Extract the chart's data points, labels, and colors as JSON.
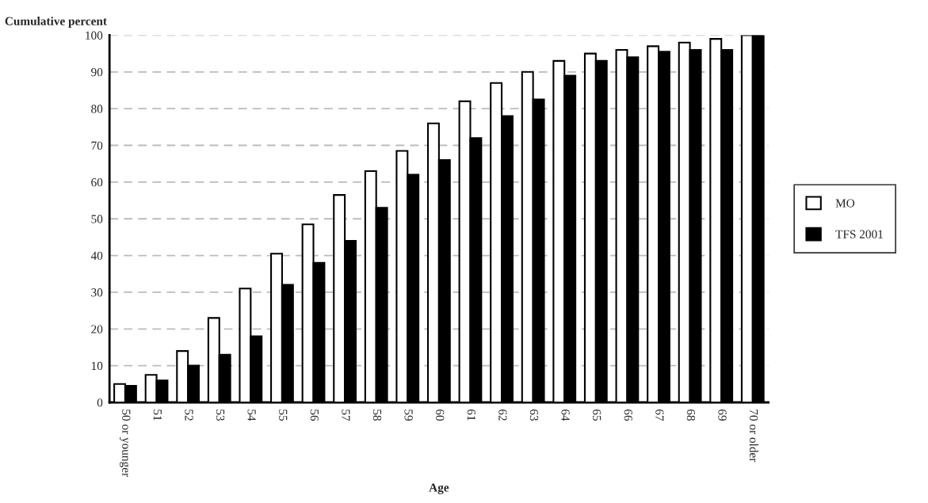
{
  "chart_data": {
    "type": "bar",
    "categories": [
      "50 or younger",
      "51",
      "52",
      "53",
      "54",
      "55",
      "56",
      "57",
      "58",
      "59",
      "60",
      "61",
      "62",
      "63",
      "64",
      "65",
      "66",
      "67",
      "68",
      "69",
      "70 or older"
    ],
    "series": [
      {
        "name": "MO",
        "color": "#ffffff",
        "values": [
          5,
          7.5,
          14,
          23,
          31,
          40.5,
          48.5,
          56.5,
          63,
          68.5,
          76,
          82,
          87,
          90,
          93,
          95,
          96,
          97,
          98,
          99,
          100
        ]
      },
      {
        "name": "TFS 2001",
        "color": "#000000",
        "values": [
          4.5,
          6,
          10,
          13,
          18,
          32,
          38,
          44,
          53,
          62,
          66,
          72,
          78,
          82.5,
          89,
          93,
          94,
          95.5,
          96,
          96,
          100
        ]
      }
    ],
    "xlabel": "Age",
    "ylabel": "Cumulative percent",
    "ylim": [
      0,
      100
    ],
    "yticks": [
      0,
      10,
      20,
      30,
      40,
      50,
      60,
      70,
      80,
      90,
      100
    ],
    "grid": "y",
    "legend": "right"
  }
}
